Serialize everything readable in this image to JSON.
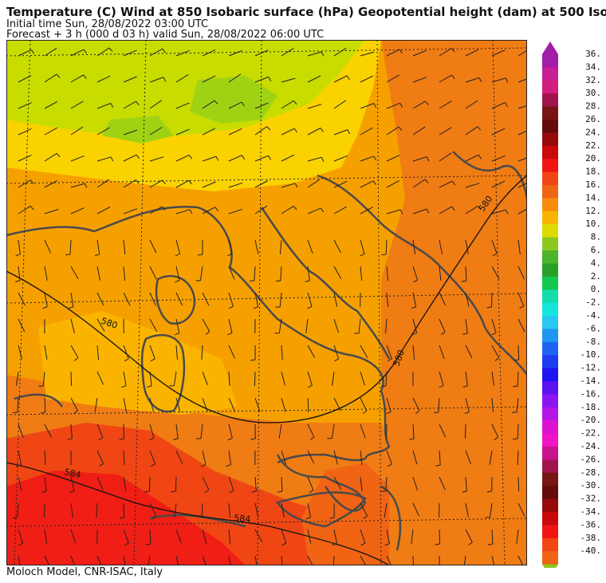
{
  "header": {
    "title": "Temperature (C) Wind  at 850 Isobaric surface (hPa) Geopotential height (dam)  at 500 Iso",
    "initial_time": "Initial time  Sun, 28/08/2022  03:00 UTC",
    "forecast": "Forecast  +   3 h  (000 d 03 h)  valid Sun, 28/08/2022 06:00 UTC"
  },
  "footer": "Moloch Model, CNR-ISAC, Italy",
  "contours": {
    "c580a": "580",
    "c580b": "580",
    "c580c": "580",
    "c584a": "584",
    "c584b": "584"
  },
  "colorbar": {
    "labels": [
      "36.",
      "34.",
      "32.",
      "30.",
      "28.",
      "26.",
      "24.",
      "22.",
      "20.",
      "18.",
      "16.",
      "14.",
      "12.",
      "10.",
      "8.",
      "6.",
      "4.",
      "2.",
      "0.",
      "-2.",
      "-4.",
      "-6.",
      "-8.",
      "-10.",
      "-12.",
      "-14.",
      "-16.",
      "-18.",
      "-20.",
      "-22.",
      "-24.",
      "-26.",
      "-28.",
      "-30.",
      "-32.",
      "-34.",
      "-36.",
      "-38.",
      "-40."
    ],
    "colors": [
      "#a21ea8",
      "#c81e96",
      "#d21e7d",
      "#a01450",
      "#781414",
      "#640a0a",
      "#960a0a",
      "#c80a0a",
      "#f01414",
      "#f04614",
      "#f06414",
      "#fa8c0a",
      "#fab400",
      "#dcdc00",
      "#8cc81e",
      "#4bb428",
      "#28a028",
      "#14c850",
      "#14dcaa",
      "#14e6dc",
      "#28c8f0",
      "#1e96f0",
      "#1e64f0",
      "#1e3cf0",
      "#1e14f0",
      "#5a14f0",
      "#8c14f0",
      "#b414e6",
      "#dc14d2",
      "#f014c8",
      "#c8148c",
      "#a01450",
      "#781414",
      "#640a0a",
      "#960a0a",
      "#c80a0a",
      "#f01414",
      "#f04614",
      "#f06414"
    ]
  }
}
